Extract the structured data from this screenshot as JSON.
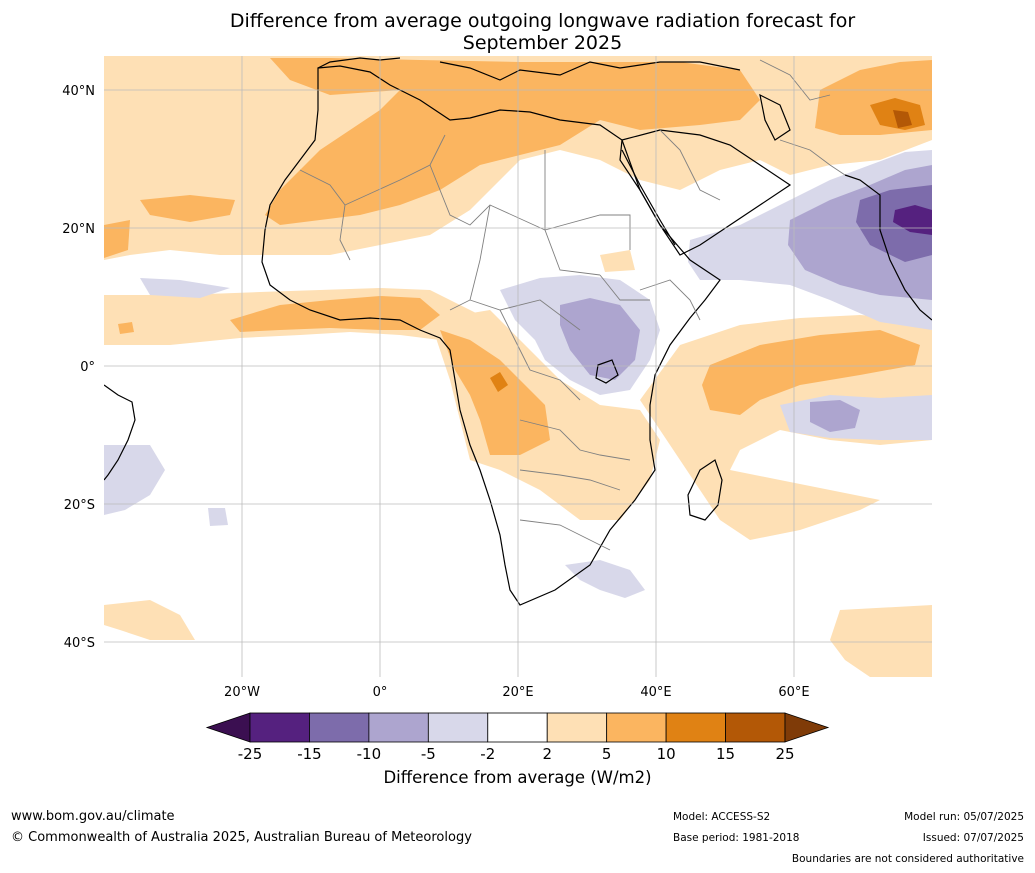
{
  "title_line1": "Difference from average outgoing longwave radiation forecast for",
  "title_line2": "September 2025",
  "lat_labels": [
    "40°N",
    "20°N",
    "0°",
    "20°S",
    "40°S"
  ],
  "lon_labels": [
    "20°W",
    "0°",
    "20°E",
    "40°E",
    "60°E"
  ],
  "colorbar": {
    "ticks": [
      "-25",
      "-15",
      "-10",
      "-5",
      "-2",
      "2",
      "5",
      "10",
      "15",
      "25"
    ],
    "colors": [
      "#3b0f51",
      "#55217f",
      "#7d6cab",
      "#ada5cf",
      "#d8d8ea",
      "#ffffff",
      "#fee0b5",
      "#fbb560",
      "#e08214",
      "#b35806",
      "#7f3b08"
    ],
    "label": "Difference from average (W/m2)"
  },
  "footer": {
    "url": "www.bom.gov.au/climate",
    "copyright": "© Commonwealth of Australia 2025, Australian Bureau of Meteorology",
    "model": "Model: ACCESS-S2",
    "base_period": "Base period: 1981-2018",
    "model_run": "Model run: 05/07/2025",
    "issued": "Issued: 07/07/2025",
    "boundaries": "Boundaries are not considered authoritative"
  }
}
